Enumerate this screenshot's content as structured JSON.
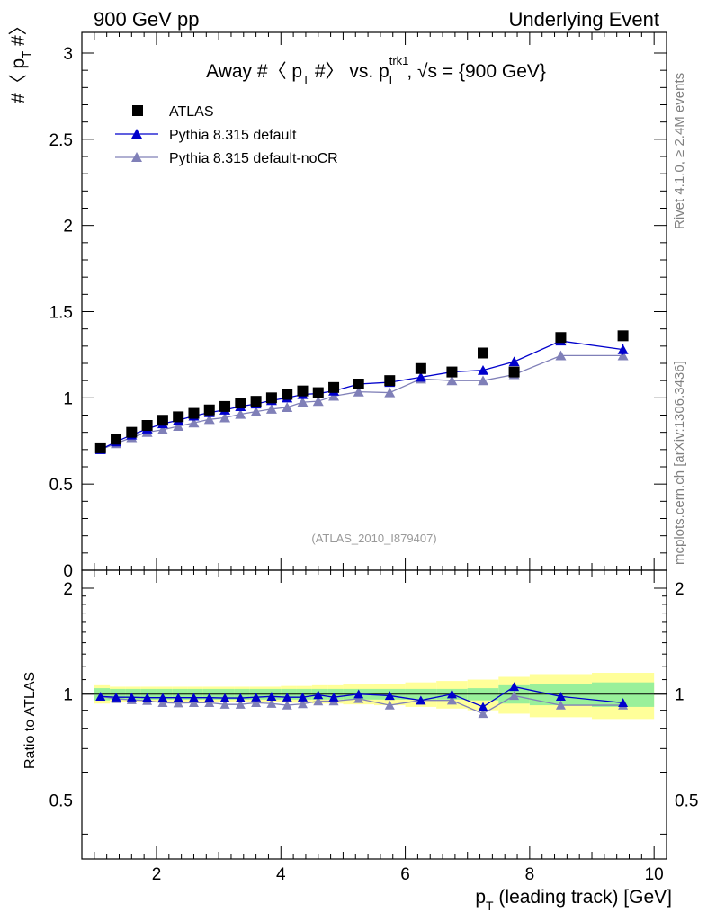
{
  "header": {
    "left": "900 GeV pp",
    "right": "Underlying Event"
  },
  "side_labels": {
    "rivet": "Rivet 4.1.0, ≥ 2.4M events",
    "mcplots": "mcplots.cern.ch [arXiv:1306.3436]"
  },
  "chart_data": {
    "type": "scatter",
    "title": "Away #〈 p_T #〉 vs. p_T^trk1, √s = {900 GeV}",
    "title_parts": {
      "t1": "Away #〈 p",
      "t1sub": "T",
      "t2": " #〉 vs. p",
      "t2sup": "trk1",
      "t2sub": "T",
      "t3": ", √s = {900 GeV}"
    },
    "ylabel_parts": {
      "a": "#〈 p",
      "sub": "T",
      "b": " #〉"
    },
    "xlabel_parts": {
      "a": "p",
      "sub": "T",
      "b": " (leading track) [GeV]"
    },
    "ratio_ylabel": "Ratio to ATLAS",
    "analysis_label": "(ATLAS_2010_I879407)",
    "xlim": [
      0.8,
      10.2
    ],
    "ylim_main": [
      0,
      3.12
    ],
    "ylim_ratio": [
      0.34,
      2.25
    ],
    "x_ticks": [
      "2",
      "4",
      "6",
      "8",
      "10"
    ],
    "x_tick_values": [
      2,
      4,
      6,
      8,
      10
    ],
    "y_ticks_main": [
      "0",
      "0.5",
      "1",
      "1.5",
      "2",
      "2.5",
      "3"
    ],
    "y_tick_values_main": [
      0,
      0.5,
      1,
      1.5,
      2,
      2.5,
      3
    ],
    "y_ticks_ratio": [
      "0.5",
      "1",
      "2"
    ],
    "y_tick_values_ratio": [
      0.5,
      1,
      2
    ],
    "x": [
      1.1,
      1.35,
      1.6,
      1.85,
      2.1,
      2.35,
      2.6,
      2.85,
      3.1,
      3.35,
      3.6,
      3.85,
      4.1,
      4.35,
      4.6,
      4.85,
      5.25,
      5.75,
      6.25,
      6.75,
      7.25,
      7.75,
      8.5,
      9.5
    ],
    "x_edges": [
      1.0,
      1.25,
      1.5,
      1.75,
      2.0,
      2.25,
      2.5,
      2.75,
      3.0,
      3.25,
      3.5,
      3.75,
      4.0,
      4.25,
      4.5,
      4.75,
      5.0,
      5.5,
      6.0,
      6.5,
      7.0,
      7.5,
      8.0,
      9.0,
      10.0
    ],
    "series": [
      {
        "name": "ATLAS",
        "color": "#000000",
        "marker": "square",
        "values": [
          0.71,
          0.76,
          0.8,
          0.84,
          0.87,
          0.89,
          0.91,
          0.93,
          0.95,
          0.97,
          0.98,
          1.0,
          1.02,
          1.04,
          1.03,
          1.06,
          1.08,
          1.1,
          1.17,
          1.15,
          1.26,
          1.15,
          1.35,
          1.36
        ]
      },
      {
        "name": "Pythia 8.315 default",
        "color": "#0000cc",
        "marker": "triangle",
        "values": [
          0.7,
          0.745,
          0.785,
          0.82,
          0.85,
          0.87,
          0.895,
          0.915,
          0.93,
          0.95,
          0.965,
          0.985,
          1.0,
          1.02,
          1.025,
          1.04,
          1.08,
          1.09,
          1.12,
          1.15,
          1.16,
          1.21,
          1.33,
          1.28
        ],
        "errors": [
          0.005,
          0.005,
          0.005,
          0.005,
          0.005,
          0.005,
          0.005,
          0.006,
          0.006,
          0.006,
          0.007,
          0.007,
          0.008,
          0.008,
          0.009,
          0.009,
          0.01,
          0.012,
          0.014,
          0.016,
          0.018,
          0.025,
          0.025,
          0.03
        ],
        "ratio": [
          0.985,
          0.98,
          0.98,
          0.977,
          0.977,
          0.977,
          0.977,
          0.977,
          0.975,
          0.975,
          0.98,
          0.985,
          0.98,
          0.98,
          0.995,
          0.98,
          1.0,
          0.99,
          0.96,
          1.0,
          0.92,
          1.05,
          0.985,
          0.945
        ]
      },
      {
        "name": "Pythia 8.315 default-noCR",
        "color": "#8080b8",
        "marker": "triangle",
        "values": [
          0.7,
          0.735,
          0.77,
          0.8,
          0.815,
          0.835,
          0.855,
          0.875,
          0.885,
          0.905,
          0.92,
          0.935,
          0.945,
          0.975,
          0.98,
          1.01,
          1.035,
          1.03,
          1.11,
          1.1,
          1.1,
          1.135,
          1.245,
          1.245
        ],
        "errors": [
          0.005,
          0.005,
          0.005,
          0.005,
          0.005,
          0.005,
          0.005,
          0.006,
          0.006,
          0.006,
          0.007,
          0.007,
          0.008,
          0.008,
          0.009,
          0.009,
          0.01,
          0.012,
          0.014,
          0.016,
          0.018,
          0.02,
          0.02,
          0.025
        ],
        "ratio": [
          0.985,
          0.97,
          0.963,
          0.958,
          0.945,
          0.943,
          0.945,
          0.945,
          0.935,
          0.935,
          0.945,
          0.94,
          0.93,
          0.938,
          0.955,
          0.955,
          0.97,
          0.93,
          0.96,
          0.96,
          0.88,
          0.99,
          0.93,
          0.93
        ]
      }
    ],
    "ratio_band_inner": [
      0.04,
      0.035,
      0.035,
      0.035,
      0.035,
      0.035,
      0.035,
      0.035,
      0.035,
      0.035,
      0.035,
      0.035,
      0.035,
      0.035,
      0.035,
      0.035,
      0.035,
      0.035,
      0.035,
      0.035,
      0.04,
      0.06,
      0.07,
      0.08
    ],
    "ratio_band_outer": [
      0.06,
      0.05,
      0.05,
      0.05,
      0.05,
      0.05,
      0.05,
      0.05,
      0.05,
      0.05,
      0.05,
      0.05,
      0.055,
      0.055,
      0.06,
      0.06,
      0.065,
      0.07,
      0.08,
      0.09,
      0.1,
      0.12,
      0.14,
      0.15
    ]
  }
}
